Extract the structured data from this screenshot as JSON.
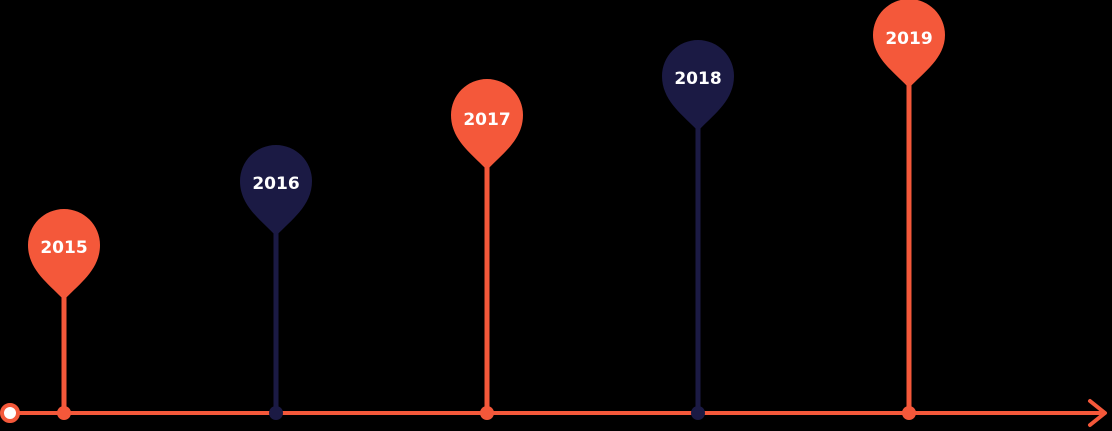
{
  "colors": {
    "orange": "#F4583A",
    "navy": "#1B1A44",
    "axis": "#F4583A",
    "start_dot_fill": "#ffffff"
  },
  "timeline": {
    "milestones": [
      {
        "year": "2015",
        "color": "orange"
      },
      {
        "year": "2016",
        "color": "navy"
      },
      {
        "year": "2017",
        "color": "orange"
      },
      {
        "year": "2018",
        "color": "navy"
      },
      {
        "year": "2019",
        "color": "orange"
      }
    ]
  }
}
